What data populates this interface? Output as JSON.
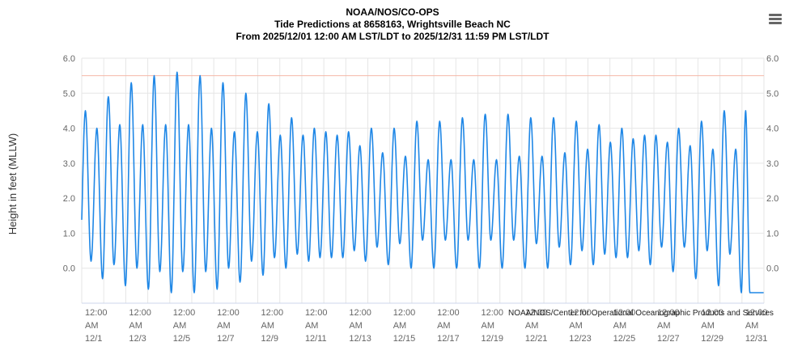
{
  "header": {
    "title": "NOAA/NOS/CO-OPS",
    "subtitle": "Tide Predictions at 8658163, Wrightsville Beach NC",
    "range": "From 2025/12/01 12:00 AM LST/LDT to 2025/12/31 11:59 PM LST/LDT"
  },
  "menu": {
    "icon": "hamburger-menu-icon"
  },
  "credits": "NOAA/NOS/Center for Operational Oceanographic Products and Services",
  "colors": {
    "series": "#1f87e6",
    "plot_band_line": "#f4b8a8",
    "grid": "#e6e6e6",
    "axis_text": "#666666"
  },
  "chart_data": {
    "type": "line",
    "ylabel": "Height in feet (MLLW)",
    "ylim": [
      -1.0,
      6.0
    ],
    "yticks": [
      "0.0",
      "1.0",
      "2.0",
      "3.0",
      "4.0",
      "5.0",
      "6.0"
    ],
    "reference_line": 5.5,
    "xticks": [
      [
        "12:00",
        "AM",
        "12/1"
      ],
      [
        "12:00",
        "AM",
        "12/3"
      ],
      [
        "12:00",
        "AM",
        "12/5"
      ],
      [
        "12:00",
        "AM",
        "12/7"
      ],
      [
        "12:00",
        "AM",
        "12/9"
      ],
      [
        "12:00",
        "AM",
        "12/11"
      ],
      [
        "12:00",
        "AM",
        "12/13"
      ],
      [
        "12:00",
        "AM",
        "12/15"
      ],
      [
        "12:00",
        "AM",
        "12/17"
      ],
      [
        "12:00",
        "AM",
        "12/19"
      ],
      [
        "12:00",
        "AM",
        "12/21"
      ],
      [
        "12:00",
        "AM",
        "12/23"
      ],
      [
        "12:00",
        "AM",
        "12/25"
      ],
      [
        "12:00",
        "AM",
        "12/27"
      ],
      [
        "12:00",
        "AM",
        "12/29"
      ],
      [
        "12:00",
        "AM",
        "12/31"
      ]
    ],
    "x_start": "2025-12-01 00:00",
    "x_end": "2025-12-31 23:59",
    "series": [
      {
        "values": [
          [
            "2025-12-01 04:00",
            4.5
          ],
          [
            "2025-12-01 10:10",
            0.2
          ],
          [
            "2025-12-01 16:30",
            4.0
          ],
          [
            "2025-12-01 22:40",
            -0.3
          ],
          [
            "2025-12-02 05:00",
            4.9
          ],
          [
            "2025-12-02 11:10",
            0.1
          ],
          [
            "2025-12-02 17:30",
            4.1
          ],
          [
            "2025-12-02 23:40",
            -0.5
          ],
          [
            "2025-12-03 06:00",
            5.3
          ],
          [
            "2025-12-03 12:10",
            0.0
          ],
          [
            "2025-12-03 18:30",
            4.1
          ],
          [
            "2025-12-04 00:40",
            -0.6
          ],
          [
            "2025-12-04 07:00",
            5.5
          ],
          [
            "2025-12-04 13:10",
            -0.1
          ],
          [
            "2025-12-04 19:30",
            4.1
          ],
          [
            "2025-12-05 01:40",
            -0.7
          ],
          [
            "2025-12-05 08:00",
            5.6
          ],
          [
            "2025-12-05 14:10",
            -0.1
          ],
          [
            "2025-12-05 20:30",
            4.1
          ],
          [
            "2025-12-06 02:40",
            -0.7
          ],
          [
            "2025-12-06 09:00",
            5.5
          ],
          [
            "2025-12-06 15:10",
            -0.1
          ],
          [
            "2025-12-06 21:30",
            4.0
          ],
          [
            "2025-12-07 03:40",
            -0.6
          ],
          [
            "2025-12-07 10:00",
            5.3
          ],
          [
            "2025-12-07 16:10",
            0.0
          ],
          [
            "2025-12-07 22:30",
            3.9
          ],
          [
            "2025-12-08 04:40",
            -0.4
          ],
          [
            "2025-12-08 11:00",
            5.0
          ],
          [
            "2025-12-08 17:10",
            0.2
          ],
          [
            "2025-12-08 23:30",
            3.9
          ],
          [
            "2025-12-09 05:40",
            -0.2
          ],
          [
            "2025-12-09 12:00",
            4.7
          ],
          [
            "2025-12-09 18:10",
            0.3
          ],
          [
            "2025-12-10 00:30",
            3.8
          ],
          [
            "2025-12-10 06:40",
            0.0
          ],
          [
            "2025-12-10 12:50",
            4.3
          ],
          [
            "2025-12-10 19:00",
            0.4
          ],
          [
            "2025-12-11 01:20",
            3.8
          ],
          [
            "2025-12-11 07:30",
            0.2
          ],
          [
            "2025-12-11 13:40",
            4.0
          ],
          [
            "2025-12-11 19:50",
            0.3
          ],
          [
            "2025-12-12 02:10",
            3.9
          ],
          [
            "2025-12-12 08:20",
            0.3
          ],
          [
            "2025-12-12 14:30",
            3.8
          ],
          [
            "2025-12-12 20:40",
            0.3
          ],
          [
            "2025-12-13 03:00",
            3.9
          ],
          [
            "2025-12-13 09:10",
            0.5
          ],
          [
            "2025-12-13 15:20",
            3.5
          ],
          [
            "2025-12-13 21:30",
            0.2
          ],
          [
            "2025-12-14 03:50",
            4.0
          ],
          [
            "2025-12-14 10:00",
            0.6
          ],
          [
            "2025-12-14 16:10",
            3.3
          ],
          [
            "2025-12-14 22:20",
            0.1
          ],
          [
            "2025-12-15 04:40",
            4.0
          ],
          [
            "2025-12-15 10:50",
            0.7
          ],
          [
            "2025-12-15 17:00",
            3.2
          ],
          [
            "2025-12-15 23:10",
            0.0
          ],
          [
            "2025-12-16 05:30",
            4.2
          ],
          [
            "2025-12-16 11:40",
            0.8
          ],
          [
            "2025-12-16 17:50",
            3.1
          ],
          [
            "2025-12-17 00:00",
            0.0
          ],
          [
            "2025-12-17 06:20",
            4.2
          ],
          [
            "2025-12-17 12:30",
            0.8
          ],
          [
            "2025-12-17 18:40",
            3.1
          ],
          [
            "2025-12-18 00:50",
            0.0
          ],
          [
            "2025-12-18 07:10",
            4.3
          ],
          [
            "2025-12-18 13:20",
            0.8
          ],
          [
            "2025-12-18 19:30",
            3.1
          ],
          [
            "2025-12-19 01:40",
            0.0
          ],
          [
            "2025-12-19 08:00",
            4.4
          ],
          [
            "2025-12-19 14:10",
            0.8
          ],
          [
            "2025-12-19 20:20",
            3.1
          ],
          [
            "2025-12-20 02:30",
            0.0
          ],
          [
            "2025-12-20 08:50",
            4.4
          ],
          [
            "2025-12-20 15:00",
            0.8
          ],
          [
            "2025-12-20 21:10",
            3.2
          ],
          [
            "2025-12-21 03:20",
            0.0
          ],
          [
            "2025-12-21 09:40",
            4.3
          ],
          [
            "2025-12-21 15:50",
            0.7
          ],
          [
            "2025-12-21 22:00",
            3.2
          ],
          [
            "2025-12-22 04:10",
            0.0
          ],
          [
            "2025-12-22 10:30",
            4.3
          ],
          [
            "2025-12-22 16:40",
            0.6
          ],
          [
            "2025-12-22 22:50",
            3.3
          ],
          [
            "2025-12-23 05:00",
            0.1
          ],
          [
            "2025-12-23 11:20",
            4.2
          ],
          [
            "2025-12-23 17:30",
            0.5
          ],
          [
            "2025-12-23 23:40",
            3.4
          ],
          [
            "2025-12-24 05:50",
            0.1
          ],
          [
            "2025-12-24 12:10",
            4.1
          ],
          [
            "2025-12-24 18:20",
            0.4
          ],
          [
            "2025-12-25 00:30",
            3.6
          ],
          [
            "2025-12-25 06:40",
            0.3
          ],
          [
            "2025-12-25 13:00",
            4.0
          ],
          [
            "2025-12-25 19:10",
            0.3
          ],
          [
            "2025-12-26 01:20",
            3.7
          ],
          [
            "2025-12-26 07:30",
            0.5
          ],
          [
            "2025-12-26 13:50",
            3.8
          ],
          [
            "2025-12-26 20:00",
            0.1
          ],
          [
            "2025-12-27 02:10",
            3.8
          ],
          [
            "2025-12-27 08:20",
            0.6
          ],
          [
            "2025-12-27 14:40",
            3.6
          ],
          [
            "2025-12-27 20:50",
            -0.1
          ],
          [
            "2025-12-28 03:00",
            4.0
          ],
          [
            "2025-12-28 09:10",
            0.6
          ],
          [
            "2025-12-28 15:30",
            3.5
          ],
          [
            "2025-12-28 21:40",
            -0.3
          ],
          [
            "2025-12-29 03:50",
            4.2
          ],
          [
            "2025-12-29 10:00",
            0.5
          ],
          [
            "2025-12-29 16:20",
            3.4
          ],
          [
            "2025-12-29 22:30",
            -0.5
          ],
          [
            "2025-12-30 04:40",
            4.5
          ],
          [
            "2025-12-30 10:50",
            0.4
          ],
          [
            "2025-12-30 17:10",
            3.4
          ],
          [
            "2025-12-30 23:20",
            -0.7
          ],
          [
            "2025-12-31 04:00",
            4.5
          ]
        ]
      }
    ]
  }
}
